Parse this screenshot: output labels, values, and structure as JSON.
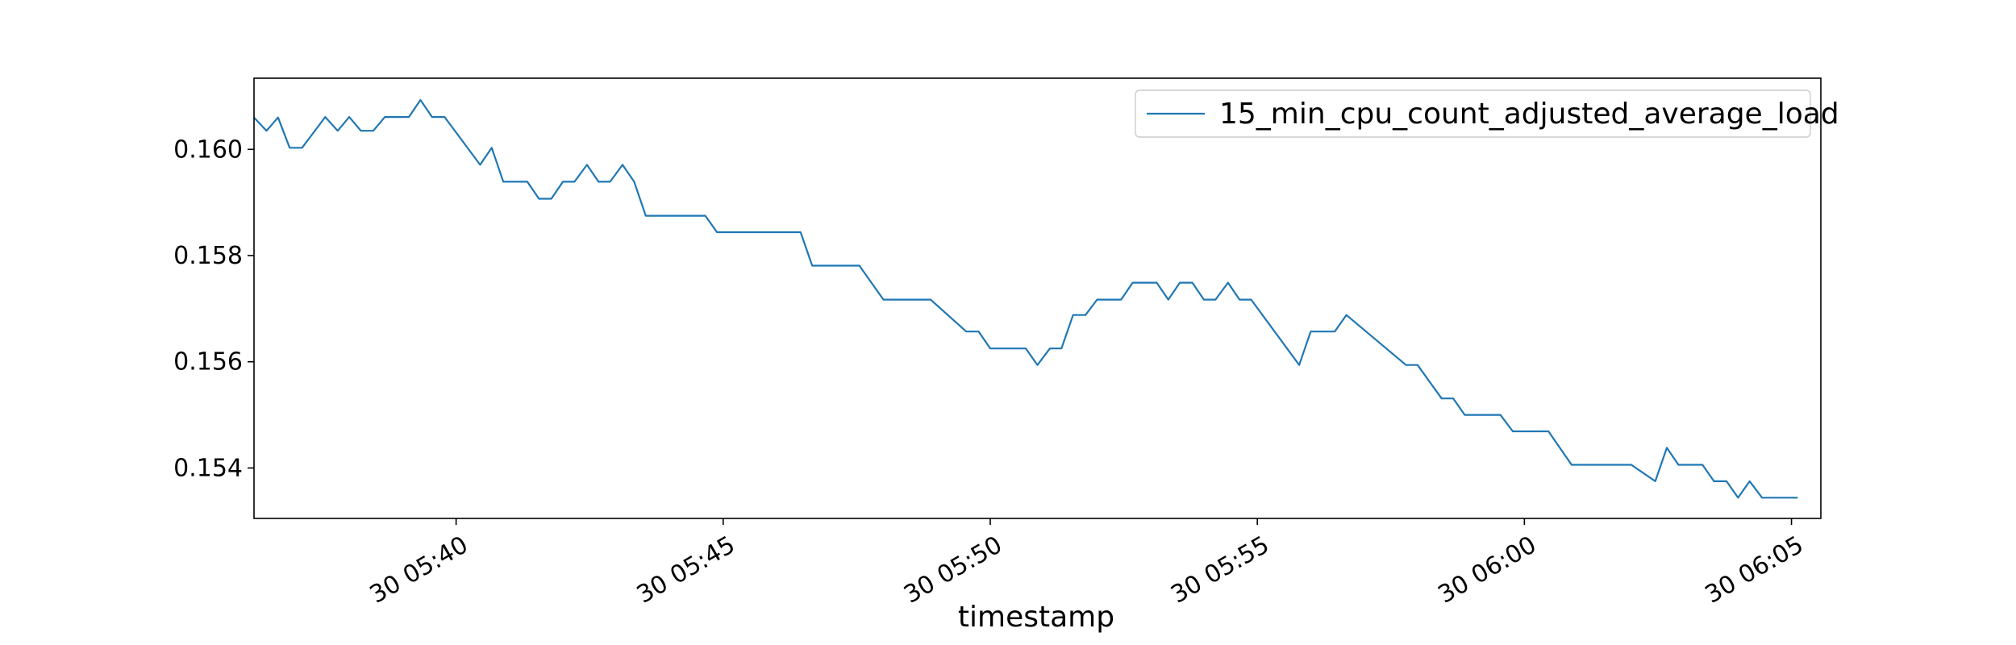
{
  "chart_data": {
    "type": "line",
    "title": "",
    "xlabel": "timestamp",
    "ylabel": "",
    "grid": false,
    "legend_position": "top-right",
    "line_color": "#1f77b4",
    "xlim": [
      "05:36:13",
      "06:05:33"
    ],
    "ylim": [
      0.15305,
      0.16134
    ],
    "x_ticks": [
      {
        "value": "05:40",
        "label": "30 05:40"
      },
      {
        "value": "05:45",
        "label": "30 05:45"
      },
      {
        "value": "05:50",
        "label": "30 05:50"
      },
      {
        "value": "05:55",
        "label": "30 05:55"
      },
      {
        "value": "06:00",
        "label": "30 06:00"
      },
      {
        "value": "06:05",
        "label": "30 06:05"
      }
    ],
    "y_ticks": [
      {
        "value": 0.154,
        "label": "0.154"
      },
      {
        "value": 0.156,
        "label": "0.156"
      },
      {
        "value": 0.158,
        "label": "0.158"
      },
      {
        "value": 0.16,
        "label": "0.160"
      }
    ],
    "series": [
      {
        "name": "15_min_cpu_count_adjusted_average_load",
        "color": "#1f77b4",
        "points": [
          [
            "05:36:13",
            0.1606
          ],
          [
            "05:36:27",
            0.16035
          ],
          [
            "05:36:40",
            0.1606
          ],
          [
            "05:36:53",
            0.16003
          ],
          [
            "05:37:07",
            0.16003
          ],
          [
            "05:37:33",
            0.16061
          ],
          [
            "05:37:47",
            0.16035
          ],
          [
            "05:38:00",
            0.16061
          ],
          [
            "05:38:13",
            0.16035
          ],
          [
            "05:38:27",
            0.16035
          ],
          [
            "05:38:40",
            0.16061
          ],
          [
            "05:39:07",
            0.16061
          ],
          [
            "05:39:20",
            0.16093
          ],
          [
            "05:39:33",
            0.16061
          ],
          [
            "05:39:47",
            0.16061
          ],
          [
            "05:40:27",
            0.15971
          ],
          [
            "05:40:40",
            0.16003
          ],
          [
            "05:40:53",
            0.15939
          ],
          [
            "05:41:20",
            0.15939
          ],
          [
            "05:41:33",
            0.15907
          ],
          [
            "05:41:47",
            0.15907
          ],
          [
            "05:42:00",
            0.15939
          ],
          [
            "05:42:13",
            0.15939
          ],
          [
            "05:42:27",
            0.15971
          ],
          [
            "05:42:40",
            0.15939
          ],
          [
            "05:42:53",
            0.15939
          ],
          [
            "05:43:07",
            0.15971
          ],
          [
            "05:43:20",
            0.15939
          ],
          [
            "05:43:33",
            0.15875
          ],
          [
            "05:44:40",
            0.15875
          ],
          [
            "05:44:53",
            0.15844
          ],
          [
            "05:46:27",
            0.15844
          ],
          [
            "05:46:40",
            0.15781
          ],
          [
            "05:47:33",
            0.15781
          ],
          [
            "05:48:00",
            0.15717
          ],
          [
            "05:48:53",
            0.15717
          ],
          [
            "05:49:33",
            0.15657
          ],
          [
            "05:49:47",
            0.15657
          ],
          [
            "05:50:00",
            0.15625
          ],
          [
            "05:50:40",
            0.15625
          ],
          [
            "05:50:53",
            0.15594
          ],
          [
            "05:51:07",
            0.15625
          ],
          [
            "05:51:20",
            0.15625
          ],
          [
            "05:51:33",
            0.15688
          ],
          [
            "05:51:47",
            0.15688
          ],
          [
            "05:52:00",
            0.15717
          ],
          [
            "05:52:27",
            0.15717
          ],
          [
            "05:52:40",
            0.15749
          ],
          [
            "05:53:07",
            0.15749
          ],
          [
            "05:53:20",
            0.15717
          ],
          [
            "05:53:33",
            0.15749
          ],
          [
            "05:53:47",
            0.15749
          ],
          [
            "05:54:00",
            0.15717
          ],
          [
            "05:54:13",
            0.15717
          ],
          [
            "05:54:27",
            0.15749
          ],
          [
            "05:54:40",
            0.15717
          ],
          [
            "05:54:53",
            0.15717
          ],
          [
            "05:55:47",
            0.15594
          ],
          [
            "05:56:00",
            0.15657
          ],
          [
            "05:56:27",
            0.15657
          ],
          [
            "05:56:40",
            0.15688
          ],
          [
            "05:57:47",
            0.15594
          ],
          [
            "05:58:00",
            0.15594
          ],
          [
            "05:58:27",
            0.15531
          ],
          [
            "05:58:40",
            0.15531
          ],
          [
            "05:58:53",
            0.155
          ],
          [
            "05:59:33",
            0.155
          ],
          [
            "05:59:47",
            0.15469
          ],
          [
            "06:00:27",
            0.15469
          ],
          [
            "06:00:53",
            0.15406
          ],
          [
            "06:02:00",
            0.15406
          ],
          [
            "06:02:27",
            0.15375
          ],
          [
            "06:02:40",
            0.15438
          ],
          [
            "06:02:53",
            0.15406
          ],
          [
            "06:03:20",
            0.15406
          ],
          [
            "06:03:33",
            0.15375
          ],
          [
            "06:03:47",
            0.15375
          ],
          [
            "06:04:00",
            0.15344
          ],
          [
            "06:04:13",
            0.15375
          ],
          [
            "06:04:27",
            0.15344
          ],
          [
            "06:04:40",
            0.15344
          ],
          [
            "06:05:07",
            0.15344
          ]
        ]
      }
    ]
  }
}
